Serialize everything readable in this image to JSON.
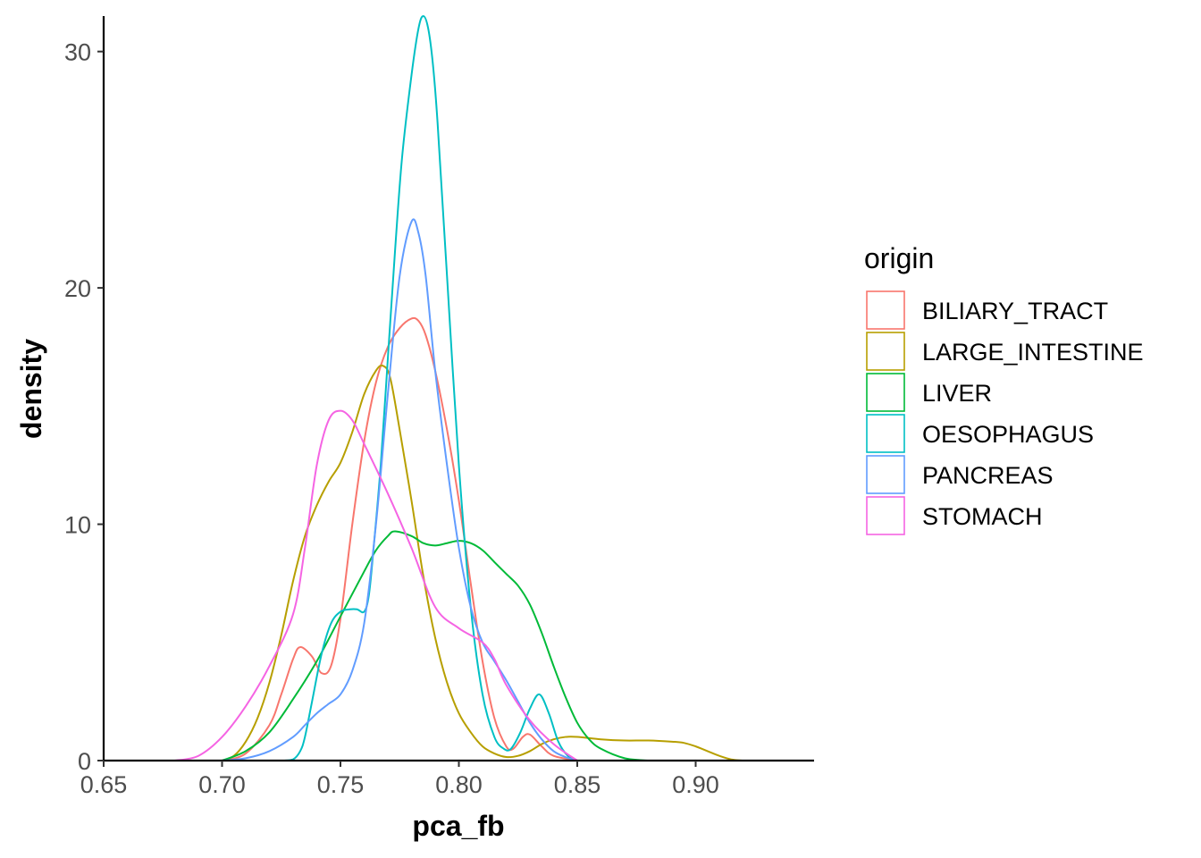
{
  "chart_data": {
    "type": "line",
    "xlabel": "pca_fb",
    "ylabel": "density",
    "xlim": [
      0.65,
      0.95
    ],
    "ylim": [
      0,
      31.5
    ],
    "x_ticks": [
      "0.65",
      "0.70",
      "0.75",
      "0.80",
      "0.85",
      "0.90"
    ],
    "y_ticks": [
      "0",
      "10",
      "20",
      "30"
    ],
    "grid": false,
    "legend": {
      "title": "origin",
      "position": "right"
    },
    "series": [
      {
        "name": "BILIARY_TRACT",
        "color": "#F8766D",
        "x": [
          0.7,
          0.71,
          0.72,
          0.725,
          0.73,
          0.733,
          0.738,
          0.742,
          0.746,
          0.75,
          0.755,
          0.76,
          0.765,
          0.77,
          0.775,
          0.78,
          0.783,
          0.786,
          0.79,
          0.795,
          0.8,
          0.805,
          0.81,
          0.815,
          0.82,
          0.823,
          0.827,
          0.83,
          0.835,
          0.84,
          0.85
        ],
        "y": [
          0,
          0.3,
          1.5,
          2.8,
          4.3,
          4.8,
          4.4,
          3.7,
          4.0,
          6.0,
          10.0,
          13.5,
          16.0,
          17.5,
          18.3,
          18.7,
          18.6,
          18.0,
          16.5,
          14.0,
          11.0,
          7.5,
          4.2,
          1.8,
          0.6,
          0.5,
          1.0,
          1.1,
          0.6,
          0.2,
          0
        ]
      },
      {
        "name": "LARGE_INTESTINE",
        "color": "#B79F00",
        "x": [
          0.7,
          0.705,
          0.71,
          0.715,
          0.72,
          0.725,
          0.73,
          0.735,
          0.74,
          0.745,
          0.75,
          0.755,
          0.76,
          0.765,
          0.768,
          0.771,
          0.775,
          0.78,
          0.785,
          0.79,
          0.795,
          0.8,
          0.805,
          0.81,
          0.815,
          0.82,
          0.825,
          0.83,
          0.835,
          0.84,
          0.845,
          0.85,
          0.86,
          0.87,
          0.88,
          0.89,
          0.895,
          0.9,
          0.905,
          0.91,
          0.915,
          0.92
        ],
        "y": [
          0,
          0.2,
          0.8,
          1.8,
          3.3,
          5.3,
          7.6,
          9.5,
          10.8,
          11.8,
          12.6,
          13.9,
          15.5,
          16.5,
          16.7,
          16.2,
          14.0,
          11.0,
          7.8,
          5.2,
          3.3,
          2.0,
          1.2,
          0.6,
          0.3,
          0.15,
          0.2,
          0.4,
          0.7,
          0.9,
          1.0,
          1.0,
          0.9,
          0.85,
          0.85,
          0.8,
          0.75,
          0.6,
          0.4,
          0.2,
          0.05,
          0
        ]
      },
      {
        "name": "LIVER",
        "color": "#00BA38",
        "x": [
          0.7,
          0.71,
          0.72,
          0.73,
          0.74,
          0.75,
          0.76,
          0.765,
          0.77,
          0.773,
          0.78,
          0.785,
          0.79,
          0.795,
          0.8,
          0.805,
          0.81,
          0.815,
          0.82,
          0.825,
          0.83,
          0.835,
          0.84,
          0.845,
          0.85,
          0.855,
          0.86,
          0.87,
          0.88
        ],
        "y": [
          0,
          0.4,
          1.2,
          2.6,
          4.2,
          6.1,
          8.0,
          8.9,
          9.5,
          9.7,
          9.5,
          9.2,
          9.1,
          9.2,
          9.3,
          9.2,
          8.9,
          8.4,
          7.9,
          7.4,
          6.6,
          5.4,
          4.0,
          2.7,
          1.6,
          0.9,
          0.5,
          0.1,
          0
        ]
      },
      {
        "name": "OESOPHAGUS",
        "color": "#00BFC4",
        "x": [
          0.726,
          0.73,
          0.733,
          0.735,
          0.738,
          0.742,
          0.746,
          0.75,
          0.754,
          0.757,
          0.76,
          0.762,
          0.764,
          0.767,
          0.77,
          0.773,
          0.776,
          0.78,
          0.783,
          0.785,
          0.787,
          0.789,
          0.791,
          0.795,
          0.8,
          0.805,
          0.81,
          0.815,
          0.819,
          0.822,
          0.826,
          0.83,
          0.834,
          0.838,
          0.842,
          0.846,
          0.85
        ],
        "y": [
          0,
          0.05,
          0.4,
          1.0,
          2.5,
          4.5,
          5.8,
          6.3,
          6.4,
          6.4,
          6.3,
          7.0,
          9.0,
          12.5,
          17.0,
          21.5,
          25.5,
          29.0,
          31.0,
          31.5,
          31.0,
          29.5,
          27.0,
          20.5,
          12.5,
          6.5,
          2.8,
          1.0,
          0.5,
          0.5,
          1.2,
          2.2,
          2.8,
          2.0,
          0.8,
          0.2,
          0
        ]
      },
      {
        "name": "PANCREAS",
        "color": "#619CFF",
        "x": [
          0.7,
          0.71,
          0.72,
          0.73,
          0.735,
          0.74,
          0.745,
          0.75,
          0.755,
          0.76,
          0.765,
          0.77,
          0.775,
          0.78,
          0.783,
          0.786,
          0.79,
          0.795,
          0.8,
          0.805,
          0.81,
          0.815,
          0.82,
          0.825,
          0.83,
          0.835,
          0.84,
          0.845,
          0.85
        ],
        "y": [
          0,
          0.1,
          0.4,
          1.0,
          1.5,
          2.0,
          2.4,
          2.8,
          3.8,
          5.8,
          10.0,
          15.5,
          20.5,
          22.8,
          22.3,
          20.5,
          16.5,
          12.5,
          9.0,
          6.5,
          5.0,
          4.2,
          3.4,
          2.5,
          1.6,
          0.9,
          0.4,
          0.15,
          0
        ]
      },
      {
        "name": "STOMACH",
        "color": "#F564E3",
        "x": [
          0.68,
          0.69,
          0.7,
          0.71,
          0.72,
          0.73,
          0.735,
          0.74,
          0.745,
          0.75,
          0.755,
          0.76,
          0.77,
          0.78,
          0.79,
          0.8,
          0.81,
          0.815,
          0.82,
          0.83,
          0.84,
          0.85
        ],
        "y": [
          0,
          0.2,
          1.0,
          2.3,
          4.0,
          6.2,
          9.0,
          12.5,
          14.4,
          14.8,
          14.4,
          13.4,
          11.3,
          9.0,
          6.5,
          5.6,
          5.0,
          4.3,
          3.2,
          1.7,
          0.7,
          0
        ]
      }
    ]
  }
}
